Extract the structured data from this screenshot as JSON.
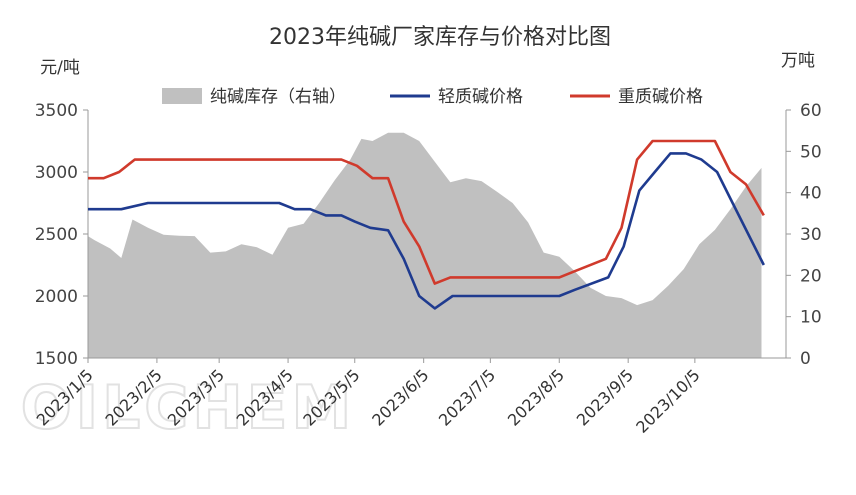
{
  "chart_data": {
    "type": "line",
    "title": "2023年纯碱厂家库存与价格对比图",
    "left_unit": "元/吨",
    "right_unit": "万吨",
    "left_ylim": [
      1500,
      3500
    ],
    "left_ticks": [
      1500,
      2000,
      2500,
      3000,
      3500
    ],
    "right_ylim": [
      0,
      60
    ],
    "right_ticks": [
      0,
      10,
      20,
      30,
      40,
      50,
      60
    ],
    "xlim": [
      "2023-01-05",
      "2023-11-15"
    ],
    "x_ticks": [
      {
        "date": "2023-01-05",
        "label": "2023/1/5"
      },
      {
        "date": "2023-02-05",
        "label": "2023/2/5"
      },
      {
        "date": "2023-03-05",
        "label": "2023/3/5"
      },
      {
        "date": "2023-04-05",
        "label": "2023/4/5"
      },
      {
        "date": "2023-05-05",
        "label": "2023/5/5"
      },
      {
        "date": "2023-06-05",
        "label": "2023/6/5"
      },
      {
        "date": "2023-07-05",
        "label": "2023/7/5"
      },
      {
        "date": "2023-08-05",
        "label": "2023/8/5"
      },
      {
        "date": "2023-09-05",
        "label": "2023/9/5"
      },
      {
        "date": "2023-10-05",
        "label": "2023/10/5"
      }
    ],
    "legend_position": "top",
    "grid": false,
    "watermark": "OILCHEM",
    "series": [
      {
        "name": "纯碱库存（右轴）",
        "kind": "area",
        "axis": "right",
        "color": "#c0c0c0",
        "points": [
          [
            "2023-01-05",
            29.5
          ],
          [
            "2023-01-08",
            28.5
          ],
          [
            "2023-01-15",
            26.5
          ],
          [
            "2023-01-20",
            24.2
          ],
          [
            "2023-01-25",
            33.5
          ],
          [
            "2023-02-01",
            31.5
          ],
          [
            "2023-02-08",
            29.8
          ],
          [
            "2023-02-15",
            29.6
          ],
          [
            "2023-02-22",
            29.5
          ],
          [
            "2023-03-01",
            25.5
          ],
          [
            "2023-03-08",
            25.8
          ],
          [
            "2023-03-15",
            27.5
          ],
          [
            "2023-03-22",
            26.8
          ],
          [
            "2023-03-29",
            25.0
          ],
          [
            "2023-04-05",
            31.5
          ],
          [
            "2023-04-12",
            32.5
          ],
          [
            "2023-04-19",
            37.5
          ],
          [
            "2023-04-26",
            43.0
          ],
          [
            "2023-05-03",
            48.0
          ],
          [
            "2023-05-08",
            53.0
          ],
          [
            "2023-05-13",
            52.5
          ],
          [
            "2023-05-20",
            54.5
          ],
          [
            "2023-05-27",
            54.5
          ],
          [
            "2023-06-03",
            52.5
          ],
          [
            "2023-06-10",
            47.5
          ],
          [
            "2023-06-17",
            42.5
          ],
          [
            "2023-06-24",
            43.5
          ],
          [
            "2023-07-01",
            42.8
          ],
          [
            "2023-07-08",
            40.2
          ],
          [
            "2023-07-15",
            37.5
          ],
          [
            "2023-07-22",
            32.8
          ],
          [
            "2023-07-29",
            25.5
          ],
          [
            "2023-08-05",
            24.5
          ],
          [
            "2023-08-12",
            21.0
          ],
          [
            "2023-08-19",
            17.0
          ],
          [
            "2023-08-26",
            15.0
          ],
          [
            "2023-09-02",
            14.5
          ],
          [
            "2023-09-09",
            12.8
          ],
          [
            "2023-09-16",
            14.0
          ],
          [
            "2023-09-23",
            17.5
          ],
          [
            "2023-09-30",
            21.5
          ],
          [
            "2023-10-07",
            27.5
          ],
          [
            "2023-10-14",
            31.0
          ],
          [
            "2023-10-21",
            36.0
          ],
          [
            "2023-10-28",
            41.5
          ],
          [
            "2023-11-04",
            46.0
          ]
        ]
      },
      {
        "name": "轻质碱价格",
        "kind": "line",
        "axis": "left",
        "color": "#1f3b8f",
        "points": [
          [
            "2023-01-05",
            2700
          ],
          [
            "2023-01-20",
            2700
          ],
          [
            "2023-02-01",
            2750
          ],
          [
            "2023-04-01",
            2750
          ],
          [
            "2023-04-08",
            2700
          ],
          [
            "2023-04-15",
            2700
          ],
          [
            "2023-04-22",
            2650
          ],
          [
            "2023-04-29",
            2650
          ],
          [
            "2023-05-05",
            2600
          ],
          [
            "2023-05-12",
            2550
          ],
          [
            "2023-05-20",
            2530
          ],
          [
            "2023-05-27",
            2300
          ],
          [
            "2023-06-03",
            2000
          ],
          [
            "2023-06-10",
            1900
          ],
          [
            "2023-06-18",
            2000
          ],
          [
            "2023-08-05",
            2000
          ],
          [
            "2023-08-12",
            2050
          ],
          [
            "2023-08-27",
            2150
          ],
          [
            "2023-09-03",
            2400
          ],
          [
            "2023-09-10",
            2850
          ],
          [
            "2023-09-17",
            3000
          ],
          [
            "2023-09-24",
            3150
          ],
          [
            "2023-10-01",
            3150
          ],
          [
            "2023-10-08",
            3100
          ],
          [
            "2023-10-15",
            3000
          ],
          [
            "2023-10-22",
            2750
          ],
          [
            "2023-10-29",
            2500
          ],
          [
            "2023-11-05",
            2250
          ]
        ]
      },
      {
        "name": "重质碱价格",
        "kind": "line",
        "axis": "left",
        "color": "#d03a2c",
        "points": [
          [
            "2023-01-05",
            2950
          ],
          [
            "2023-01-12",
            2950
          ],
          [
            "2023-01-19",
            3000
          ],
          [
            "2023-01-26",
            3100
          ],
          [
            "2023-04-29",
            3100
          ],
          [
            "2023-05-06",
            3050
          ],
          [
            "2023-05-13",
            2950
          ],
          [
            "2023-05-20",
            2950
          ],
          [
            "2023-05-27",
            2600
          ],
          [
            "2023-06-03",
            2400
          ],
          [
            "2023-06-10",
            2100
          ],
          [
            "2023-06-17",
            2150
          ],
          [
            "2023-08-05",
            2150
          ],
          [
            "2023-08-12",
            2200
          ],
          [
            "2023-08-26",
            2300
          ],
          [
            "2023-09-02",
            2550
          ],
          [
            "2023-09-09",
            3100
          ],
          [
            "2023-09-16",
            3250
          ],
          [
            "2023-10-14",
            3250
          ],
          [
            "2023-10-21",
            3000
          ],
          [
            "2023-10-28",
            2900
          ],
          [
            "2023-11-05",
            2650
          ]
        ]
      }
    ]
  }
}
